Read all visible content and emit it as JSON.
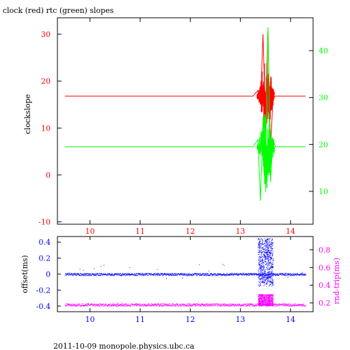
{
  "title": "clock (red) rtc (green) slopes",
  "footer": "2011-10-09  monopole.physics.ubc.ca",
  "colors": {
    "red": "#ff0000",
    "green": "#00ff00",
    "blue": "#0000ff",
    "magenta": "#ff00ff",
    "axis": "#000000"
  },
  "chart_data": [
    {
      "type": "line",
      "title": "clock (red) rtc (green) slopes",
      "xlabel": "",
      "xlim": [
        9.35,
        14.45
      ],
      "x_ticks": [
        10,
        11,
        12,
        13,
        14
      ],
      "grid": false,
      "left_axis": {
        "label": "clockslope",
        "ylim": [
          -10.5,
          33.5
        ],
        "ticks": [
          -10,
          0,
          10,
          20,
          30
        ]
      },
      "right_axis": {
        "label": "",
        "ylim": [
          3,
          47
        ],
        "ticks": [
          10,
          20,
          30,
          40
        ]
      },
      "series": [
        {
          "color": "#ff0000",
          "axis": "left",
          "x": [
            9.5,
            10.5,
            11.5,
            12.5,
            13.0,
            13.25,
            13.35,
            13.4,
            13.45,
            13.5,
            13.55,
            13.6,
            13.65,
            13.7,
            14.3
          ],
          "y": [
            16.8,
            16.8,
            16.8,
            16.8,
            16.8,
            16.8,
            18.0,
            15.0,
            30.0,
            12.0,
            31.0,
            5.0,
            16.5,
            16.8,
            16.8
          ]
        },
        {
          "color": "#00ff00",
          "axis": "right",
          "x": [
            9.5,
            10.5,
            11.5,
            12.5,
            13.0,
            13.25,
            13.35,
            13.4,
            13.45,
            13.5,
            13.55,
            13.6,
            13.65,
            13.7,
            14.3
          ],
          "y": [
            19.5,
            19.5,
            19.5,
            19.5,
            19.5,
            19.5,
            21.0,
            8.0,
            25.0,
            15.0,
            45.0,
            12.0,
            21.0,
            19.5,
            19.5
          ]
        }
      ]
    },
    {
      "type": "scatter",
      "xlim": [
        9.35,
        14.45
      ],
      "x_ticks": [
        10,
        11,
        12,
        13,
        14
      ],
      "grid": false,
      "left_axis": {
        "label": "offset(ms)",
        "ylim": [
          -0.47,
          0.47
        ],
        "ticks": [
          -0.4,
          -0.2,
          0,
          0.2,
          0.4
        ]
      },
      "right_axis": {
        "label": "rnd-trip(ms)",
        "ylim": [
          0.1,
          0.95
        ],
        "ticks": [
          0.2,
          0.4,
          0.6,
          0.8
        ]
      },
      "series": [
        {
          "color": "#0000ff",
          "axis": "left",
          "baseline": 0.0,
          "spread": 0.015,
          "burst_x": [
            13.35,
            13.65
          ],
          "burst_range": [
            -0.15,
            0.45
          ]
        },
        {
          "color": "#ff00ff",
          "axis": "right",
          "baseline": 0.18,
          "spread": 0.015,
          "burst_x": [
            13.35,
            13.65
          ],
          "burst_range": [
            0.17,
            0.3
          ]
        }
      ]
    }
  ]
}
